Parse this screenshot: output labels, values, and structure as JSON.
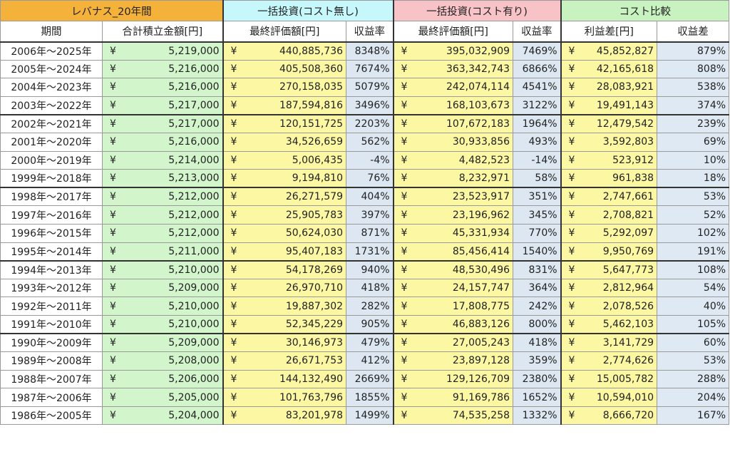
{
  "group_headers": {
    "main": "レバナス_20年間",
    "no_cost": "一括投資(コスト無し)",
    "with_cost": "一括投資(コスト有り)",
    "compare": "コスト比較"
  },
  "column_headers": {
    "period": "期間",
    "total_contrib": "合計積立金額[円]",
    "final_nocost": "最終評価額[円]",
    "rate_nocost": "収益率",
    "final_cost": "最終評価額[円]",
    "rate_cost": "収益率",
    "profit_diff": "利益差[円]",
    "rate_diff": "収益差"
  },
  "yen_symbol": "¥",
  "colors": {
    "main_header": "#f5b23b",
    "no_cost_header": "#c6f7fb",
    "with_cost_header": "#f7c3c6",
    "compare_header": "#c8f2c0",
    "contrib_fill": "#d2f5cc",
    "value_fill": "#fbf7a3",
    "rate_fill": "#dce7f1"
  },
  "rows": [
    {
      "period": "2006年～2025年",
      "total": "5,219,000",
      "final_nocost": "440,885,736",
      "rate_nocost": "8348%",
      "final_cost": "395,032,909",
      "rate_cost": "7469%",
      "diff": "45,852,827",
      "rate_diff": "879%"
    },
    {
      "period": "2005年～2024年",
      "total": "5,216,000",
      "final_nocost": "405,508,360",
      "rate_nocost": "7674%",
      "final_cost": "363,342,743",
      "rate_cost": "6866%",
      "diff": "42,165,618",
      "rate_diff": "808%"
    },
    {
      "period": "2004年～2023年",
      "total": "5,216,000",
      "final_nocost": "270,158,035",
      "rate_nocost": "5079%",
      "final_cost": "242,074,114",
      "rate_cost": "4541%",
      "diff": "28,083,921",
      "rate_diff": "538%"
    },
    {
      "period": "2003年～2022年",
      "total": "5,217,000",
      "final_nocost": "187,594,816",
      "rate_nocost": "3496%",
      "final_cost": "168,103,673",
      "rate_cost": "3122%",
      "diff": "19,491,143",
      "rate_diff": "374%"
    },
    {
      "period": "2002年～2021年",
      "total": "5,217,000",
      "final_nocost": "120,151,725",
      "rate_nocost": "2203%",
      "final_cost": "107,672,183",
      "rate_cost": "1964%",
      "diff": "12,479,542",
      "rate_diff": "239%"
    },
    {
      "period": "2001年～2020年",
      "total": "5,216,000",
      "final_nocost": "34,526,659",
      "rate_nocost": "562%",
      "final_cost": "30,933,856",
      "rate_cost": "493%",
      "diff": "3,592,803",
      "rate_diff": "69%"
    },
    {
      "period": "2000年～2019年",
      "total": "5,214,000",
      "final_nocost": "5,006,435",
      "rate_nocost": "-4%",
      "final_cost": "4,482,523",
      "rate_cost": "-14%",
      "diff": "523,912",
      "rate_diff": "10%"
    },
    {
      "period": "1999年～2018年",
      "total": "5,213,000",
      "final_nocost": "9,194,810",
      "rate_nocost": "76%",
      "final_cost": "8,232,971",
      "rate_cost": "58%",
      "diff": "961,838",
      "rate_diff": "18%"
    },
    {
      "period": "1998年～2017年",
      "total": "5,212,000",
      "final_nocost": "26,271,579",
      "rate_nocost": "404%",
      "final_cost": "23,523,917",
      "rate_cost": "351%",
      "diff": "2,747,661",
      "rate_diff": "53%"
    },
    {
      "period": "1997年～2016年",
      "total": "5,212,000",
      "final_nocost": "25,905,783",
      "rate_nocost": "397%",
      "final_cost": "23,196,962",
      "rate_cost": "345%",
      "diff": "2,708,821",
      "rate_diff": "52%"
    },
    {
      "period": "1996年～2015年",
      "total": "5,212,000",
      "final_nocost": "50,624,030",
      "rate_nocost": "871%",
      "final_cost": "45,331,934",
      "rate_cost": "770%",
      "diff": "5,292,097",
      "rate_diff": "102%"
    },
    {
      "period": "1995年～2014年",
      "total": "5,211,000",
      "final_nocost": "95,407,183",
      "rate_nocost": "1731%",
      "final_cost": "85,456,414",
      "rate_cost": "1540%",
      "diff": "9,950,769",
      "rate_diff": "191%"
    },
    {
      "period": "1994年～2013年",
      "total": "5,210,000",
      "final_nocost": "54,178,269",
      "rate_nocost": "940%",
      "final_cost": "48,530,496",
      "rate_cost": "831%",
      "diff": "5,647,773",
      "rate_diff": "108%"
    },
    {
      "period": "1993年～2012年",
      "total": "5,209,000",
      "final_nocost": "26,970,710",
      "rate_nocost": "418%",
      "final_cost": "24,157,747",
      "rate_cost": "364%",
      "diff": "2,812,964",
      "rate_diff": "54%"
    },
    {
      "period": "1992年～2011年",
      "total": "5,210,000",
      "final_nocost": "19,887,302",
      "rate_nocost": "282%",
      "final_cost": "17,808,775",
      "rate_cost": "242%",
      "diff": "2,078,526",
      "rate_diff": "40%"
    },
    {
      "period": "1991年～2010年",
      "total": "5,210,000",
      "final_nocost": "52,345,229",
      "rate_nocost": "905%",
      "final_cost": "46,883,126",
      "rate_cost": "800%",
      "diff": "5,462,103",
      "rate_diff": "105%"
    },
    {
      "period": "1990年～2009年",
      "total": "5,209,000",
      "final_nocost": "30,146,973",
      "rate_nocost": "479%",
      "final_cost": "27,005,243",
      "rate_cost": "418%",
      "diff": "3,141,729",
      "rate_diff": "60%"
    },
    {
      "period": "1989年～2008年",
      "total": "5,208,000",
      "final_nocost": "26,671,753",
      "rate_nocost": "412%",
      "final_cost": "23,897,128",
      "rate_cost": "359%",
      "diff": "2,774,626",
      "rate_diff": "53%"
    },
    {
      "period": "1988年～2007年",
      "total": "5,206,000",
      "final_nocost": "144,132,490",
      "rate_nocost": "2669%",
      "final_cost": "129,126,709",
      "rate_cost": "2380%",
      "diff": "15,005,782",
      "rate_diff": "288%"
    },
    {
      "period": "1987年～2006年",
      "total": "5,205,000",
      "final_nocost": "101,763,796",
      "rate_nocost": "1855%",
      "final_cost": "91,169,786",
      "rate_cost": "1652%",
      "diff": "10,594,010",
      "rate_diff": "204%"
    },
    {
      "period": "1986年～2005年",
      "total": "5,204,000",
      "final_nocost": "83,201,978",
      "rate_nocost": "1499%",
      "final_cost": "74,535,258",
      "rate_cost": "1332%",
      "diff": "8,666,720",
      "rate_diff": "167%"
    }
  ]
}
